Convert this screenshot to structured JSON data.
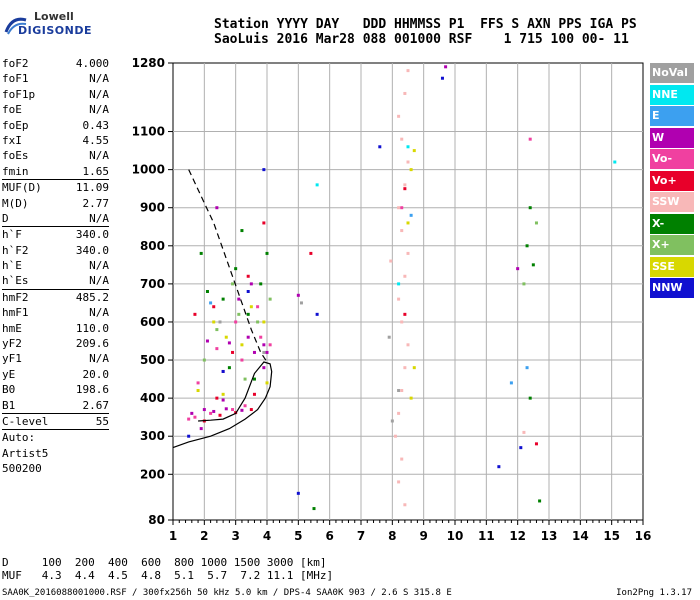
{
  "logo": {
    "line1": "Lowell",
    "line2": "DIGISONDE"
  },
  "header": {
    "line1": "Station YYYY DAY   DDD HHMMSS P1  FFS S AXN PPS IGA PS",
    "line2": "SaoLuis 2016 Mar28 088 001000 RSF    1 715 100 00- 11"
  },
  "parameters": [
    {
      "name": "foF2",
      "value": "4.000"
    },
    {
      "name": "foF1",
      "value": "N/A"
    },
    {
      "name": "foF1p",
      "value": "N/A"
    },
    {
      "name": "foE",
      "value": "N/A"
    },
    {
      "name": "foEp",
      "value": "0.43"
    },
    {
      "name": "fxI",
      "value": "4.55"
    },
    {
      "name": "foEs",
      "value": "N/A"
    },
    {
      "name": "fmin",
      "value": "1.65"
    },
    {
      "sep": true
    },
    {
      "name": "MUF(D)",
      "value": "11.09"
    },
    {
      "name": "M(D)",
      "value": "2.77"
    },
    {
      "name": "D",
      "value": "N/A"
    },
    {
      "sep": true
    },
    {
      "name": "h`F",
      "value": "340.0"
    },
    {
      "name": "h`F2",
      "value": "340.0"
    },
    {
      "name": "h`E",
      "value": "N/A"
    },
    {
      "name": "h`Es",
      "value": "N/A"
    },
    {
      "sep": true
    },
    {
      "name": "hmF2",
      "value": "485.2"
    },
    {
      "name": "hmF1",
      "value": "N/A"
    },
    {
      "name": "hmE",
      "value": "110.0"
    },
    {
      "name": "yF2",
      "value": "209.6"
    },
    {
      "name": "yF1",
      "value": "N/A"
    },
    {
      "name": "yE",
      "value": "20.0"
    },
    {
      "name": "B0",
      "value": "198.6"
    },
    {
      "name": "B1",
      "value": "2.67"
    },
    {
      "sep": true
    },
    {
      "name": "C-level",
      "value": "55"
    },
    {
      "sep": true
    },
    {
      "name": "Auto:",
      "value": ""
    },
    {
      "name": "Artist5",
      "value": ""
    },
    {
      "name": "500200",
      "value": ""
    }
  ],
  "bottom_table": {
    "row1": "D     100  200  400  600  800 1000 1500 3000 [km]",
    "row2": "MUF   4.3  4.4  4.5  4.8  5.1  5.7  7.2 11.1 [MHz]"
  },
  "footer": "SAA0K_2016088001000.RSF / 300fx256h 50 kHz 5.0 km / DPS-4 SAA0K 903 / 2.6 S 315.8 E",
  "version": "Ion2Png 1.3.17",
  "legend": [
    {
      "label": "NoVal",
      "color": "#a0a0a0"
    },
    {
      "label": "NNE",
      "color": "#00e8f0"
    },
    {
      "label": "E",
      "color": "#3ca0f0"
    },
    {
      "label": "W",
      "color": "#b000b0"
    },
    {
      "label": "Vo-",
      "color": "#f040a0"
    },
    {
      "label": "Vo+",
      "color": "#e8002a"
    },
    {
      "label": "SSW",
      "color": "#f8b8b8"
    },
    {
      "label": "X-",
      "color": "#008000"
    },
    {
      "label": "X+",
      "color": "#80c060"
    },
    {
      "label": "SSE",
      "color": "#d8d800"
    },
    {
      "label": "NNW",
      "color": "#1010d0"
    }
  ],
  "chart_data": {
    "type": "scatter",
    "title": "",
    "xlabel": "",
    "ylabel": "",
    "xlim": [
      1,
      16
    ],
    "ylim": [
      80,
      1280
    ],
    "x_ticks": [
      1,
      2,
      3,
      4,
      5,
      6,
      7,
      8,
      9,
      10,
      11,
      12,
      13,
      14,
      15,
      16
    ],
    "y_ticks": [
      80,
      200,
      300,
      400,
      500,
      600,
      700,
      800,
      900,
      1000,
      1100,
      1280
    ],
    "grid": true,
    "legend_position": "right",
    "series": [
      {
        "name": "NoVal",
        "values": [
          [
            5.1,
            650
          ],
          [
            7.9,
            560
          ],
          [
            8.2,
            420
          ],
          [
            8.0,
            340
          ],
          [
            3.9,
            520
          ],
          [
            2.5,
            600
          ]
        ]
      },
      {
        "name": "NNE",
        "values": [
          [
            8.5,
            1060
          ],
          [
            15.1,
            1020
          ],
          [
            5.6,
            960
          ],
          [
            8.2,
            700
          ]
        ]
      },
      {
        "name": "E",
        "values": [
          [
            11.8,
            440
          ],
          [
            12.3,
            480
          ],
          [
            8.6,
            880
          ],
          [
            2.2,
            650
          ]
        ]
      },
      {
        "name": "W",
        "values": [
          [
            1.6,
            360
          ],
          [
            2.0,
            370
          ],
          [
            2.3,
            365
          ],
          [
            2.7,
            372
          ],
          [
            3.2,
            368
          ],
          [
            3.6,
            520
          ],
          [
            3.9,
            540
          ],
          [
            2.1,
            550
          ],
          [
            2.8,
            545
          ],
          [
            3.4,
            560
          ],
          [
            4.0,
            520
          ],
          [
            1.9,
            320
          ],
          [
            2.6,
            395
          ],
          [
            3.1,
            660
          ],
          [
            3.5,
            700
          ],
          [
            3.9,
            480
          ],
          [
            5.0,
            670
          ],
          [
            12.0,
            740
          ],
          [
            2.4,
            900
          ],
          [
            9.7,
            1270
          ]
        ]
      },
      {
        "name": "Vo-",
        "values": [
          [
            1.7,
            350
          ],
          [
            2.2,
            360
          ],
          [
            2.9,
            370
          ],
          [
            3.3,
            380
          ],
          [
            1.8,
            440
          ],
          [
            2.4,
            530
          ],
          [
            3.0,
            600
          ],
          [
            3.7,
            640
          ],
          [
            2.6,
            470
          ],
          [
            3.2,
            500
          ],
          [
            3.8,
            560
          ],
          [
            1.5,
            345
          ],
          [
            4.1,
            540
          ],
          [
            8.3,
            900
          ],
          [
            12.4,
            1080
          ]
        ]
      },
      {
        "name": "Vo+",
        "values": [
          [
            2.0,
            340
          ],
          [
            2.5,
            355
          ],
          [
            3.0,
            362
          ],
          [
            3.5,
            370
          ],
          [
            1.7,
            620
          ],
          [
            2.3,
            640
          ],
          [
            3.4,
            720
          ],
          [
            3.9,
            860
          ],
          [
            2.9,
            520
          ],
          [
            8.4,
            950
          ],
          [
            8.4,
            620
          ],
          [
            12.6,
            280
          ],
          [
            5.4,
            780
          ],
          [
            2.4,
            400
          ],
          [
            3.6,
            410
          ]
        ]
      },
      {
        "name": "SSW",
        "values": [
          [
            8.1,
            300
          ],
          [
            8.2,
            360
          ],
          [
            8.3,
            420
          ],
          [
            8.4,
            480
          ],
          [
            8.5,
            540
          ],
          [
            8.3,
            600
          ],
          [
            8.2,
            660
          ],
          [
            8.4,
            720
          ],
          [
            8.5,
            780
          ],
          [
            8.3,
            840
          ],
          [
            8.2,
            900
          ],
          [
            8.4,
            960
          ],
          [
            8.5,
            1020
          ],
          [
            8.3,
            1080
          ],
          [
            8.2,
            1140
          ],
          [
            8.4,
            1200
          ],
          [
            8.5,
            1260
          ],
          [
            8.3,
            240
          ],
          [
            8.2,
            180
          ],
          [
            8.4,
            120
          ],
          [
            7.95,
            760
          ],
          [
            12.2,
            310
          ]
        ]
      },
      {
        "name": "X-",
        "values": [
          [
            2.1,
            680
          ],
          [
            2.6,
            660
          ],
          [
            3.0,
            740
          ],
          [
            3.4,
            620
          ],
          [
            3.8,
            700
          ],
          [
            4.0,
            780
          ],
          [
            2.8,
            480
          ],
          [
            3.6,
            450
          ],
          [
            12.4,
            900
          ],
          [
            12.3,
            800
          ],
          [
            12.5,
            750
          ],
          [
            12.4,
            400
          ],
          [
            12.7,
            130
          ],
          [
            5.5,
            110
          ],
          [
            1.9,
            780
          ],
          [
            3.2,
            840
          ]
        ]
      },
      {
        "name": "X+",
        "values": [
          [
            2.4,
            580
          ],
          [
            3.1,
            620
          ],
          [
            3.7,
            600
          ],
          [
            4.1,
            660
          ],
          [
            2.0,
            500
          ],
          [
            3.3,
            450
          ],
          [
            12.6,
            860
          ],
          [
            12.2,
            700
          ],
          [
            2.9,
            700
          ]
        ]
      },
      {
        "name": "SSE",
        "values": [
          [
            1.8,
            420
          ],
          [
            2.3,
            600
          ],
          [
            2.7,
            560
          ],
          [
            3.5,
            640
          ],
          [
            3.9,
            600
          ],
          [
            2.6,
            410
          ],
          [
            4.0,
            440
          ],
          [
            3.2,
            540
          ],
          [
            8.6,
            1000
          ],
          [
            8.7,
            1050
          ],
          [
            8.5,
            860
          ],
          [
            8.7,
            480
          ],
          [
            8.6,
            400
          ]
        ]
      },
      {
        "name": "NNW",
        "values": [
          [
            1.5,
            300
          ],
          [
            2.6,
            470
          ],
          [
            3.4,
            680
          ],
          [
            3.9,
            1000
          ],
          [
            5.6,
            620
          ],
          [
            7.6,
            1060
          ],
          [
            9.6,
            1240
          ],
          [
            11.4,
            220
          ],
          [
            12.1,
            270
          ],
          [
            5.0,
            150
          ]
        ]
      }
    ],
    "curves": [
      {
        "style": "solid",
        "values": [
          [
            1.0,
            270
          ],
          [
            1.5,
            285
          ],
          [
            2.2,
            300
          ],
          [
            2.8,
            320
          ],
          [
            3.3,
            345
          ],
          [
            3.7,
            370
          ],
          [
            3.95,
            400
          ],
          [
            4.1,
            430
          ],
          [
            4.15,
            470
          ],
          [
            4.1,
            490
          ],
          [
            3.9,
            495
          ],
          [
            3.6,
            465
          ],
          [
            3.3,
            400
          ],
          [
            3.0,
            360
          ],
          [
            2.6,
            345
          ],
          [
            2.2,
            342
          ],
          [
            1.8,
            340
          ]
        ]
      },
      {
        "style": "dashed",
        "values": [
          [
            1.5,
            1000
          ],
          [
            1.9,
            930
          ],
          [
            2.3,
            860
          ],
          [
            2.6,
            790
          ],
          [
            2.9,
            720
          ],
          [
            3.2,
            650
          ],
          [
            3.5,
            580
          ],
          [
            3.8,
            520
          ],
          [
            4.0,
            495
          ]
        ]
      }
    ]
  }
}
